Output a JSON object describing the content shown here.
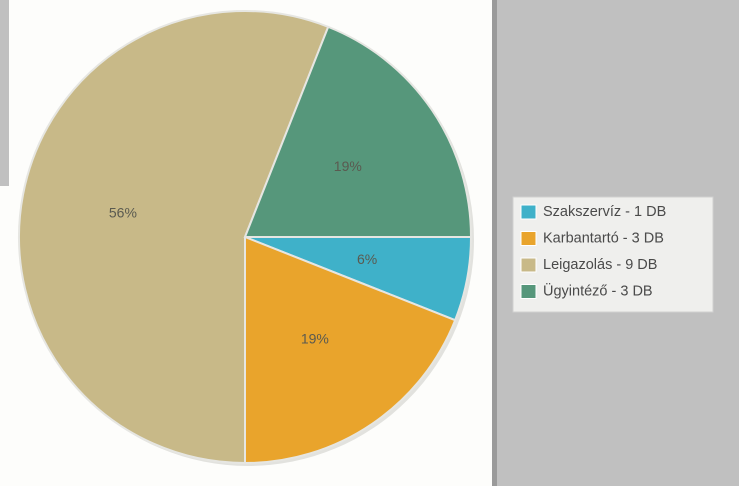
{
  "chart_data": {
    "type": "pie",
    "categories": [
      "Szakszervíz - 1 DB",
      "Karbantartó - 3 DB",
      "Leigazolás - 9 DB",
      "Ügyintéző - 3 DB"
    ],
    "values": [
      6,
      19,
      56,
      19
    ],
    "value_labels": [
      "6%",
      "19%",
      "56%",
      "19%"
    ],
    "colors": [
      "#3fb1c9",
      "#e9a42c",
      "#c8b988",
      "#56977b"
    ],
    "legend": "right"
  }
}
